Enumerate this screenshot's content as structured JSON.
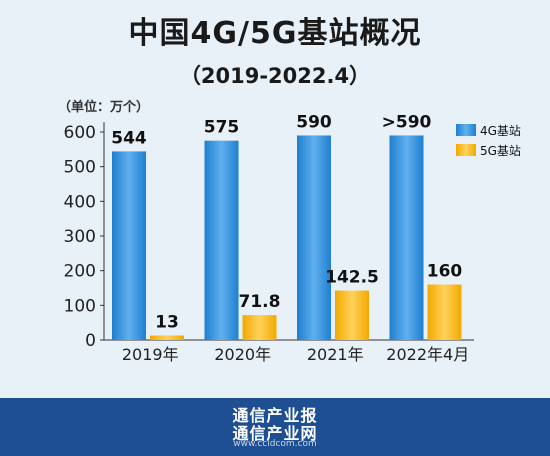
{
  "header": {
    "title": "中国4G/5G基站概况",
    "subtitle": "（2019-2022.4）",
    "unit": "（单位：万个）"
  },
  "footer": {
    "line1": "通信产业报",
    "line2": "通信产业网",
    "line3": "www.ccidcom.com"
  },
  "colors": {
    "series_4g": "#1f7fd0",
    "series_5g": "#f2a900",
    "background": "#e8f1f8",
    "footer": "#1f4f93"
  },
  "chart_data": {
    "type": "bar",
    "categories": [
      "2019年",
      "2020年",
      "2021年",
      "2022年4月"
    ],
    "series": [
      {
        "name": "4G基站",
        "values": [
          544,
          575,
          590,
          590
        ],
        "labels": [
          "544",
          "575",
          "590",
          ">590"
        ]
      },
      {
        "name": "5G基站",
        "values": [
          13,
          71.8,
          142.5,
          160
        ],
        "labels": [
          "13",
          "71.8",
          "142.5",
          "160"
        ]
      }
    ],
    "yticks": [
      0,
      100,
      200,
      300,
      400,
      500,
      600
    ],
    "ylim": [
      0,
      600
    ],
    "legend_position": "top-right",
    "grid": false
  }
}
